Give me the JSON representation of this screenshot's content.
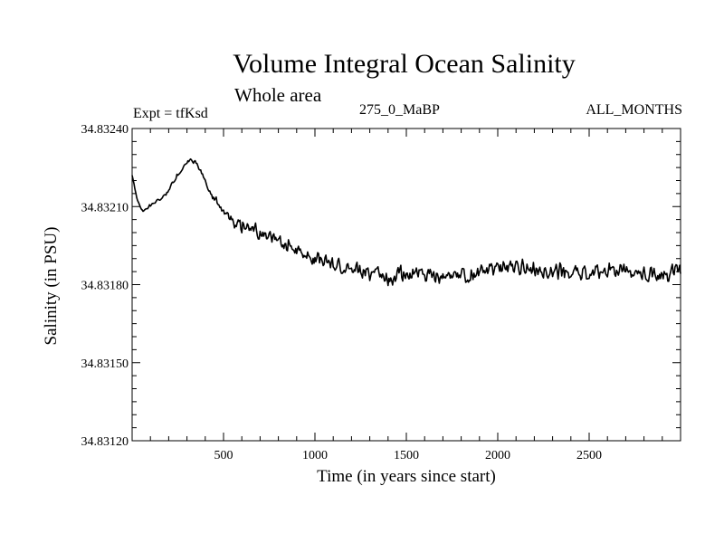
{
  "chart_data": {
    "type": "line",
    "title": "Volume Integral Ocean Salinity",
    "subtitle": "Whole area",
    "annotations": {
      "left": "Expt = tfKsd",
      "center": "275_0_MaBP",
      "right": "ALL_MONTHS"
    },
    "xlabel": "Time (in years since start)",
    "ylabel": "Salinity (in PSU)",
    "xlim": [
      0,
      3000
    ],
    "ylim": [
      34.8312,
      34.8324
    ],
    "xticks": [
      500,
      1000,
      1500,
      2000,
      2500
    ],
    "xtick_labels": [
      "500",
      "1000",
      "1500",
      "2000",
      "2500"
    ],
    "yticks": [
      34.8312,
      34.8315,
      34.8318,
      34.8321,
      34.8324
    ],
    "ytick_labels": [
      "34.83120",
      "34.83150",
      "34.83180",
      "34.83210",
      "34.83240"
    ],
    "grid": false,
    "series": [
      {
        "name": "Salinity",
        "color": "#000000",
        "x": [
          0,
          30,
          60,
          90,
          120,
          160,
          200,
          240,
          280,
          320,
          360,
          400,
          440,
          500,
          560,
          620,
          700,
          800,
          900,
          1000,
          1100,
          1200,
          1300,
          1400,
          1500,
          1600,
          1700,
          1800,
          1900,
          2000,
          2100,
          2200,
          2300,
          2400,
          2500,
          2600,
          2700,
          2800,
          2900,
          3000
        ],
        "values": [
          34.83222,
          34.83212,
          34.83208,
          34.8321,
          34.83211,
          34.83213,
          34.83216,
          34.83221,
          34.83225,
          34.83228,
          34.83226,
          34.8322,
          34.83214,
          34.83208,
          34.83204,
          34.83202,
          34.832,
          34.83197,
          34.83193,
          34.8319,
          34.83188,
          34.83186,
          34.83184,
          34.83183,
          34.83184,
          34.83184,
          34.83183,
          34.83183,
          34.83184,
          34.83186,
          34.83187,
          34.83186,
          34.83185,
          34.83184,
          34.83185,
          34.83186,
          34.83185,
          34.83184,
          34.83184,
          34.83185
        ],
        "noise_amplitude": [
          0.6,
          0.8,
          0.8,
          0.8,
          0.9,
          0.9,
          1.0,
          1.0,
          1.0,
          1.1,
          1.1,
          1.4,
          1.8,
          2.2,
          2.4,
          2.5,
          2.6,
          2.8,
          3.0,
          3.2,
          3.3,
          3.4,
          3.5,
          3.6,
          3.6,
          3.6,
          3.6,
          3.6,
          3.6,
          3.6,
          3.6,
          3.6,
          3.6,
          3.6,
          3.6,
          3.6,
          3.6,
          3.6,
          3.6,
          3.6
        ],
        "noise_scale": 1e-05
      }
    ]
  }
}
